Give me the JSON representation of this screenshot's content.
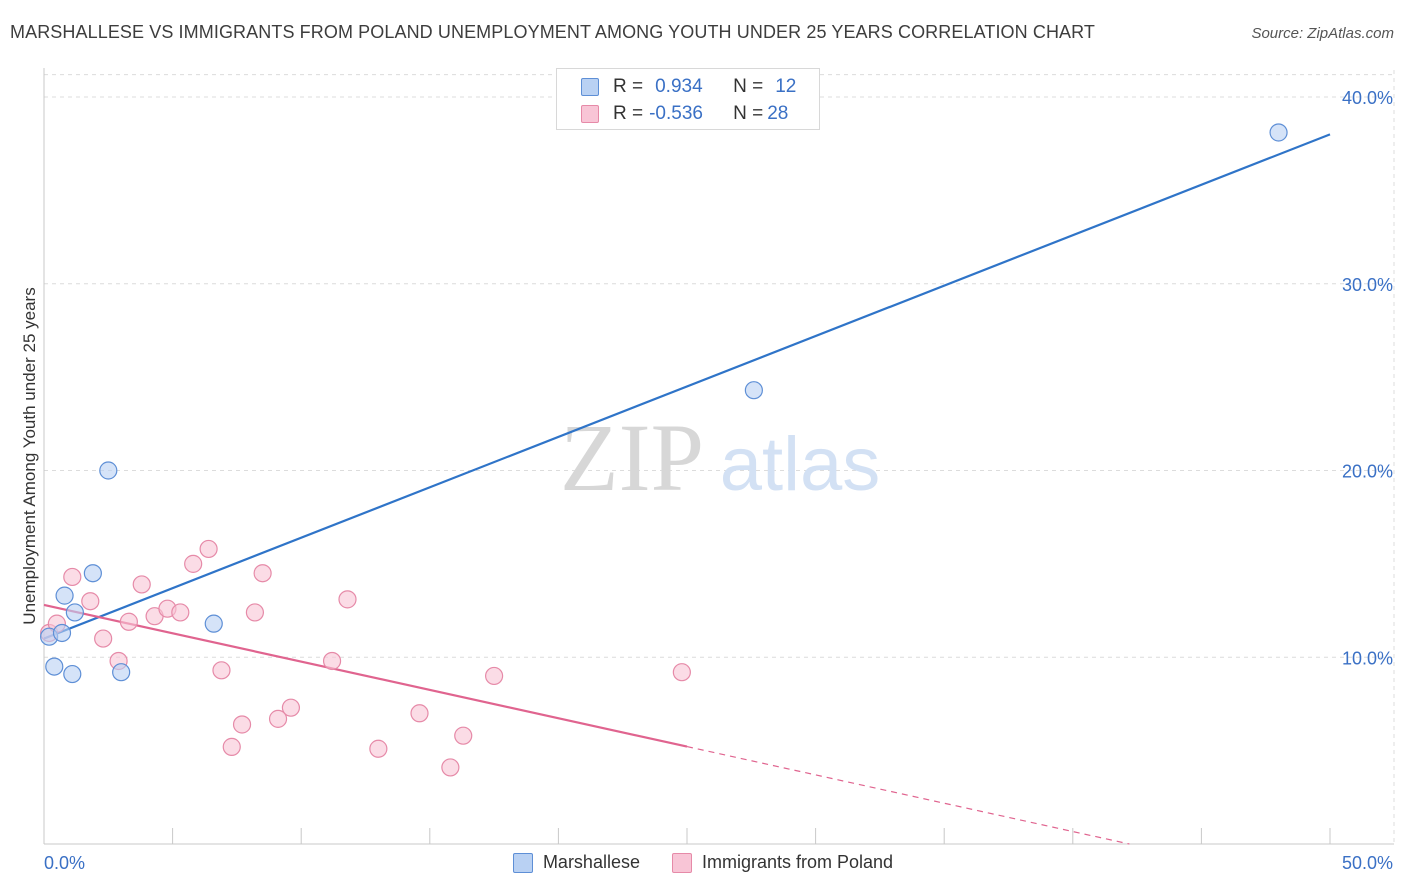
{
  "title": "MARSHALLESE VS IMMIGRANTS FROM POLAND UNEMPLOYMENT AMONG YOUTH UNDER 25 YEARS CORRELATION CHART",
  "source": "Source: ZipAtlas.com",
  "watermark": {
    "zip": "ZIP",
    "atlas": "atlas"
  },
  "colors": {
    "marshallese_fill": "#b9d1f3",
    "marshallese_stroke": "#5e8fd6",
    "marshallese_line": "#2f74c8",
    "poland_fill": "#f8c5d6",
    "poland_stroke": "#e68aa8",
    "poland_line": "#e0648f",
    "axis_label": "#3a70c5"
  },
  "stats": [
    {
      "r_label": "R =",
      "r_value": "0.934",
      "n_label": "N =",
      "n_value": "12"
    },
    {
      "r_label": "R =",
      "r_value": "-0.536",
      "n_label": "N =",
      "n_value": "28"
    }
  ],
  "chart_data": {
    "type": "scatter",
    "xlabel": "",
    "ylabel": "Unemployment Among Youth under 25 years",
    "xlim": [
      0,
      50
    ],
    "ylim": [
      0,
      40
    ],
    "x_tick_labels": [
      "0.0%",
      "50.0%"
    ],
    "y_ticks": [
      10,
      20,
      30,
      40
    ],
    "y_tick_labels": [
      "10.0%",
      "20.0%",
      "30.0%",
      "40.0%"
    ],
    "grid": true,
    "legend_position": "bottom-center",
    "series": [
      {
        "name": "Marshallese",
        "points": [
          [
            0.2,
            11.1
          ],
          [
            0.4,
            9.5
          ],
          [
            0.7,
            11.3
          ],
          [
            0.8,
            13.3
          ],
          [
            1.1,
            9.1
          ],
          [
            1.2,
            12.4
          ],
          [
            1.9,
            14.5
          ],
          [
            2.5,
            20.0
          ],
          [
            3.0,
            9.2
          ],
          [
            6.6,
            11.8
          ],
          [
            27.6,
            24.3
          ],
          [
            48.0,
            38.1
          ]
        ],
        "trend": {
          "x0": 0,
          "y0": 11.0,
          "x1": 50,
          "y1": 38.0,
          "solid_to": 50
        }
      },
      {
        "name": "Immigrants from Poland",
        "points": [
          [
            0.2,
            11.3
          ],
          [
            0.5,
            11.8
          ],
          [
            1.1,
            14.3
          ],
          [
            1.8,
            13.0
          ],
          [
            2.3,
            11.0
          ],
          [
            2.9,
            9.8
          ],
          [
            3.3,
            11.9
          ],
          [
            3.8,
            13.9
          ],
          [
            4.3,
            12.2
          ],
          [
            4.8,
            12.6
          ],
          [
            5.3,
            12.4
          ],
          [
            5.8,
            15.0
          ],
          [
            6.4,
            15.8
          ],
          [
            6.9,
            9.3
          ],
          [
            7.3,
            5.2
          ],
          [
            7.7,
            6.4
          ],
          [
            8.2,
            12.4
          ],
          [
            8.5,
            14.5
          ],
          [
            9.1,
            6.7
          ],
          [
            9.6,
            7.3
          ],
          [
            11.2,
            9.8
          ],
          [
            11.8,
            13.1
          ],
          [
            13.0,
            5.1
          ],
          [
            14.6,
            7.0
          ],
          [
            15.8,
            4.1
          ],
          [
            16.3,
            5.8
          ],
          [
            17.5,
            9.0
          ],
          [
            24.8,
            9.2
          ]
        ],
        "trend": {
          "x0": 0,
          "y0": 12.8,
          "x1": 42.2,
          "y1": 0,
          "solid_to": 25
        }
      }
    ]
  }
}
